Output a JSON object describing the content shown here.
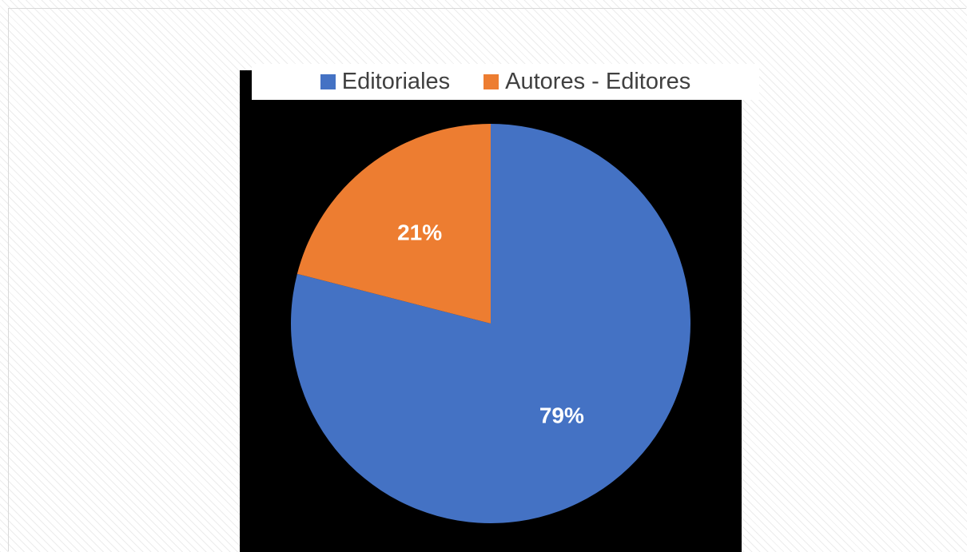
{
  "chart_data": {
    "type": "pie",
    "title": "",
    "categories": [
      "Editoriales",
      "Autores - Editores"
    ],
    "values": [
      79,
      21
    ],
    "labels": [
      "79%",
      "21%"
    ],
    "colors": [
      "#4472C4",
      "#ED7D31"
    ],
    "legend_position": "top",
    "start_angle_deg": 0,
    "direction": "clockwise"
  }
}
